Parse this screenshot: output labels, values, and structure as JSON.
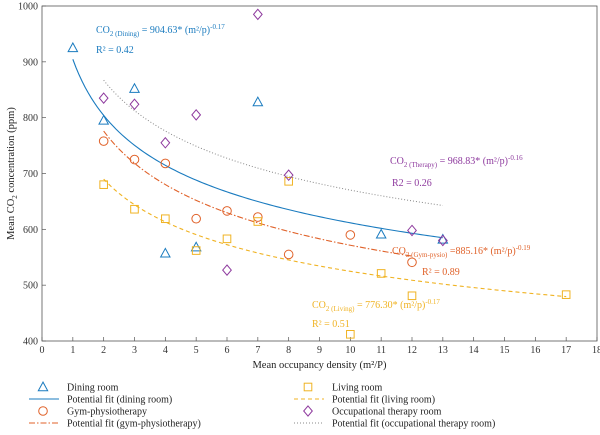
{
  "chart_data": {
    "type": "scatter",
    "xlabel": "Mean occupancy density (m²/P)",
    "ylabel_main": "Mean CO",
    "ylabel_sub": "2",
    "ylabel_rest": " concentration (ppm)",
    "xlim": [
      0,
      18
    ],
    "ylim": [
      400,
      1000
    ],
    "xticks": [
      0,
      1,
      2,
      3,
      4,
      5,
      6,
      7,
      8,
      9,
      10,
      11,
      12,
      13,
      14,
      15,
      16,
      17,
      18
    ],
    "yticks": [
      400,
      500,
      600,
      700,
      800,
      900,
      1000
    ],
    "grid": false,
    "legend_placement": "bottom",
    "series": [
      {
        "name": "Dining room",
        "marker": "triangle",
        "color": "#1a7bbf",
        "points": [
          [
            1,
            925
          ],
          [
            2,
            795
          ],
          [
            3,
            852
          ],
          [
            4,
            557
          ],
          [
            5,
            568
          ],
          [
            7,
            828
          ],
          [
            11,
            591
          ],
          [
            13,
            582
          ]
        ],
        "fit": {
          "name": "Potential fit (dining room)",
          "a": 904.63,
          "b": -0.17,
          "x_range": [
            1,
            13
          ],
          "style": "solid"
        },
        "eq": {
          "pre": "CO",
          "sub": "2 (Dining)",
          "post": " = 904.63* (m²/p)",
          "sup": "-0.17"
        },
        "r2": "R² = 0.42"
      },
      {
        "name": "Gym-physiotherapy",
        "marker": "circle",
        "color": "#e0622a",
        "points": [
          [
            2,
            758
          ],
          [
            3,
            725
          ],
          [
            4,
            718
          ],
          [
            5,
            619
          ],
          [
            6,
            633
          ],
          [
            7,
            622
          ],
          [
            8,
            555
          ],
          [
            10,
            590
          ],
          [
            12,
            541
          ]
        ],
        "fit": {
          "name": "Potential fit (gym-physiotherapy)",
          "a": 885.16,
          "b": -0.19,
          "x_range": [
            2,
            12
          ],
          "style": "dashdot"
        },
        "eq": {
          "pre": "CO",
          "sub": "2 (Gym-pysio)",
          "post": " =885.16* (m²/p)",
          "sup": "-0.19"
        },
        "r2": "R² = 0.89"
      },
      {
        "name": "Living room",
        "marker": "square",
        "color": "#f0b323",
        "points": [
          [
            2,
            680
          ],
          [
            3,
            636
          ],
          [
            4,
            619
          ],
          [
            5,
            562
          ],
          [
            6,
            583
          ],
          [
            7,
            614
          ],
          [
            8,
            686
          ],
          [
            10,
            412
          ],
          [
            11,
            521
          ],
          [
            12,
            481
          ],
          [
            17,
            483
          ]
        ],
        "fit": {
          "name": "Potential fit (living room)",
          "a": 776.3,
          "b": -0.17,
          "x_range": [
            2,
            17
          ],
          "style": "dashed"
        },
        "eq": {
          "pre": "CO",
          "sub": "2 (Living)",
          "post": " = 776.30* (m²/p)",
          "sup": "-0.17"
        },
        "r2": "R² = 0.51"
      },
      {
        "name": "Occupational therapy room",
        "marker": "diamond",
        "color": "#8e3a9e",
        "points": [
          [
            2,
            835
          ],
          [
            3,
            824
          ],
          [
            4,
            755
          ],
          [
            5,
            805
          ],
          [
            6,
            527
          ],
          [
            7,
            985
          ],
          [
            8,
            697
          ],
          [
            12,
            598
          ],
          [
            13,
            580
          ]
        ],
        "fit": {
          "name": "Potential fit (occupational therapy room)",
          "a": 968.83,
          "b": -0.16,
          "x_range": [
            2,
            13
          ],
          "style": "dotted"
        },
        "eq": {
          "pre": "CO",
          "sub": "2 (Therapy)",
          "post": " = 968.83* (m²/p)",
          "sup": "-0.16"
        },
        "r2": "R2 = 0.26"
      }
    ]
  }
}
